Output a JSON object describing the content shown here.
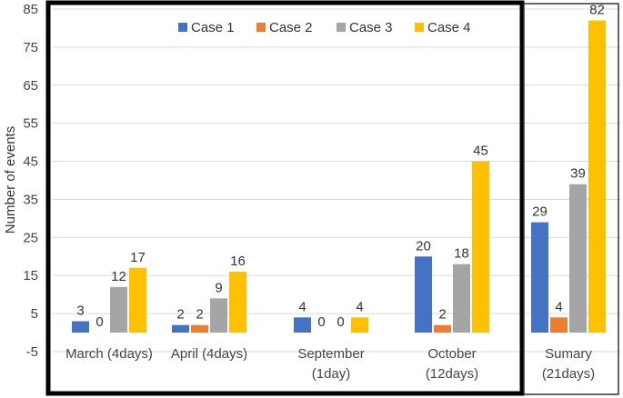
{
  "chart_data": {
    "type": "bar",
    "ylabel": "Number of events",
    "xlabel": "",
    "ylim": [
      -5,
      85
    ],
    "yticks": [
      -5,
      5,
      15,
      25,
      35,
      45,
      55,
      65,
      75,
      85
    ],
    "grid": true,
    "legend_position": "top",
    "categories": [
      [
        "March (4days)"
      ],
      [
        "April (4days)"
      ],
      [
        "September",
        "(1day)"
      ],
      [
        "October",
        "(12days)"
      ],
      [
        "Sumary",
        "(21days)"
      ]
    ],
    "series": [
      {
        "name": "Case 1",
        "color": "#4472C4",
        "values": [
          3,
          2,
          4,
          20,
          29
        ]
      },
      {
        "name": "Case 2",
        "color": "#ED7D31",
        "values": [
          0,
          2,
          0,
          2,
          4
        ]
      },
      {
        "name": "Case 3",
        "color": "#A5A5A5",
        "values": [
          12,
          9,
          0,
          18,
          39
        ]
      },
      {
        "name": "Case 4",
        "color": "#FFC000",
        "values": [
          17,
          16,
          4,
          45,
          82
        ]
      }
    ],
    "highlight_boxes": [
      {
        "from_category": 0,
        "to_category": 3
      },
      {
        "from_category": 4,
        "to_category": 4
      }
    ]
  }
}
